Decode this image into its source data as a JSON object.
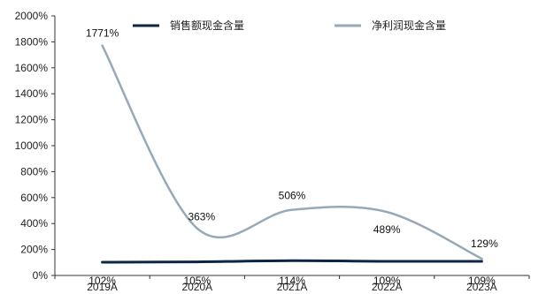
{
  "chart_data": {
    "type": "line",
    "categories": [
      "2019A",
      "2020A",
      "2021A",
      "2022A",
      "2023A"
    ],
    "ylim": [
      0,
      2000
    ],
    "yticks": [
      0,
      200,
      400,
      600,
      800,
      1000,
      1200,
      1400,
      1600,
      1800,
      2000
    ],
    "ytick_labels": [
      "0%",
      "200%",
      "400%",
      "600%",
      "800%",
      "1000%",
      "1200%",
      "1400%",
      "1600%",
      "1800%",
      "2000%"
    ],
    "legend_position": "top",
    "grid": false,
    "series": [
      {
        "name": "销售额现金含量",
        "color": "#0b2545",
        "values": [
          102,
          105,
          114,
          109,
          109
        ],
        "labels": [
          "102%",
          "105%",
          "114%",
          "109%",
          "109%"
        ]
      },
      {
        "name": "净利润现金含量",
        "color": "#97a8b8",
        "values": [
          1771,
          363,
          506,
          489,
          129
        ],
        "labels": [
          "1771%",
          "363%",
          "506%",
          "489%",
          "129%"
        ]
      }
    ]
  }
}
